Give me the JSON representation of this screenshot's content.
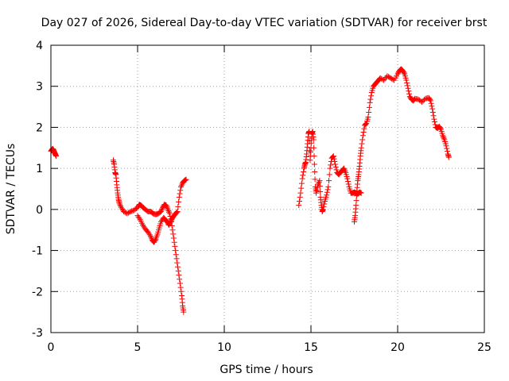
{
  "chart_data": {
    "type": "scatter",
    "title": "Day 027 of 2026, Sidereal Day-to-day VTEC variation (SDTVAR) for receiver brst",
    "xlabel": "GPS time / hours",
    "ylabel": "SDTVAR / TECUs",
    "xlim": [
      0,
      25
    ],
    "ylim": [
      -3,
      4
    ],
    "xticks": [
      0,
      5,
      10,
      15,
      20,
      25
    ],
    "yticks": [
      -3,
      -2,
      -1,
      0,
      1,
      2,
      3,
      4
    ],
    "grid": true,
    "marker": "+",
    "marker_color": "#ff0000",
    "series": [
      {
        "segments": [
          [
            [
              0.0,
              1.42
            ],
            [
              0.05,
              1.45
            ],
            [
              0.1,
              1.48
            ],
            [
              0.15,
              1.45
            ],
            [
              0.2,
              1.4
            ],
            [
              0.25,
              1.35
            ],
            [
              0.3,
              1.3
            ]
          ],
          [
            [
              3.6,
              1.2
            ],
            [
              3.65,
              1.1
            ],
            [
              3.7,
              0.9
            ],
            [
              3.75,
              0.85
            ],
            [
              3.8,
              0.6
            ],
            [
              3.85,
              0.4
            ],
            [
              3.9,
              0.25
            ],
            [
              3.95,
              0.15
            ],
            [
              4.05,
              0.05
            ],
            [
              4.2,
              -0.05
            ],
            [
              4.4,
              -0.1
            ],
            [
              4.6,
              -0.05
            ],
            [
              4.8,
              -0.02
            ],
            [
              5.0,
              0.05
            ],
            [
              5.1,
              0.12
            ],
            [
              5.2,
              0.1
            ],
            [
              5.3,
              0.05
            ],
            [
              5.45,
              0.0
            ],
            [
              5.6,
              -0.05
            ],
            [
              5.75,
              -0.05
            ],
            [
              5.9,
              -0.1
            ],
            [
              6.05,
              -0.12
            ],
            [
              6.2,
              -0.1
            ],
            [
              6.35,
              -0.05
            ],
            [
              6.45,
              0.05
            ],
            [
              6.55,
              0.12
            ],
            [
              6.65,
              0.1
            ],
            [
              6.75,
              0.0
            ],
            [
              6.85,
              -0.1
            ],
            [
              6.95,
              -0.3
            ],
            [
              7.05,
              -0.6
            ],
            [
              7.15,
              -0.9
            ],
            [
              7.25,
              -1.2
            ],
            [
              7.35,
              -1.5
            ],
            [
              7.45,
              -1.8
            ],
            [
              7.55,
              -2.1
            ],
            [
              7.6,
              -2.35
            ],
            [
              7.65,
              -2.5
            ]
          ],
          [
            [
              5.0,
              -0.15
            ],
            [
              5.15,
              -0.25
            ],
            [
              5.3,
              -0.38
            ],
            [
              5.45,
              -0.48
            ],
            [
              5.6,
              -0.55
            ],
            [
              5.75,
              -0.65
            ],
            [
              5.85,
              -0.75
            ],
            [
              5.95,
              -0.8
            ],
            [
              6.05,
              -0.72
            ],
            [
              6.15,
              -0.6
            ],
            [
              6.25,
              -0.45
            ],
            [
              6.35,
              -0.3
            ],
            [
              6.5,
              -0.2
            ],
            [
              6.6,
              -0.25
            ],
            [
              6.7,
              -0.3
            ],
            [
              6.8,
              -0.38
            ],
            [
              6.9,
              -0.3
            ],
            [
              7.0,
              -0.22
            ],
            [
              7.1,
              -0.15
            ],
            [
              7.2,
              -0.1
            ],
            [
              7.3,
              -0.05
            ],
            [
              7.4,
              0.3
            ],
            [
              7.5,
              0.55
            ],
            [
              7.6,
              0.65
            ],
            [
              7.7,
              0.7
            ],
            [
              7.8,
              0.73
            ]
          ],
          [
            [
              14.3,
              0.1
            ],
            [
              14.4,
              0.4
            ],
            [
              14.5,
              0.75
            ],
            [
              14.6,
              1.0
            ],
            [
              14.65,
              1.1
            ],
            [
              14.7,
              1.15
            ],
            [
              14.75,
              1.35
            ],
            [
              14.8,
              1.6
            ],
            [
              14.85,
              1.85
            ],
            [
              14.9,
              1.9
            ],
            [
              14.95,
              1.2
            ],
            [
              15.0,
              1.5
            ],
            [
              15.05,
              1.85
            ],
            [
              15.1,
              1.9
            ],
            [
              15.15,
              1.7
            ],
            [
              15.2,
              1.1
            ],
            [
              15.25,
              0.55
            ],
            [
              15.3,
              0.4
            ],
            [
              15.4,
              0.6
            ],
            [
              15.5,
              0.7
            ],
            [
              15.55,
              0.3
            ],
            [
              15.6,
              0.1
            ],
            [
              15.65,
              -0.05
            ],
            [
              15.7,
              0.0
            ],
            [
              15.8,
              0.2
            ],
            [
              15.9,
              0.35
            ],
            [
              16.0,
              0.55
            ],
            [
              16.1,
              1.0
            ],
            [
              16.2,
              1.25
            ],
            [
              16.3,
              1.3
            ],
            [
              16.4,
              1.1
            ],
            [
              16.5,
              0.9
            ],
            [
              16.6,
              0.85
            ],
            [
              16.7,
              0.9
            ],
            [
              16.8,
              0.95
            ],
            [
              16.9,
              1.0
            ],
            [
              17.0,
              0.9
            ],
            [
              17.1,
              0.75
            ],
            [
              17.2,
              0.55
            ],
            [
              17.3,
              0.4
            ],
            [
              17.4,
              0.4
            ],
            [
              17.5,
              0.42
            ],
            [
              17.6,
              0.4
            ],
            [
              17.7,
              0.38
            ],
            [
              17.8,
              0.42
            ],
            [
              17.9,
              0.4
            ]
          ],
          [
            [
              17.5,
              -0.3
            ],
            [
              17.55,
              -0.15
            ],
            [
              17.6,
              0.1
            ],
            [
              17.65,
              0.45
            ],
            [
              17.7,
              0.7
            ],
            [
              17.75,
              0.85
            ],
            [
              17.8,
              1.05
            ],
            [
              17.85,
              1.3
            ],
            [
              17.9,
              1.5
            ],
            [
              18.0,
              1.8
            ],
            [
              18.1,
              2.05
            ],
            [
              18.2,
              2.1
            ],
            [
              18.3,
              2.25
            ],
            [
              18.4,
              2.6
            ],
            [
              18.5,
              2.85
            ],
            [
              18.6,
              3.0
            ],
            [
              18.7,
              3.05
            ],
            [
              18.8,
              3.1
            ],
            [
              18.9,
              3.15
            ],
            [
              19.0,
              3.2
            ],
            [
              19.2,
              3.15
            ],
            [
              19.4,
              3.25
            ],
            [
              19.6,
              3.2
            ],
            [
              19.8,
              3.15
            ],
            [
              20.0,
              3.3
            ],
            [
              20.1,
              3.38
            ],
            [
              20.2,
              3.42
            ],
            [
              20.3,
              3.38
            ],
            [
              20.4,
              3.3
            ],
            [
              20.5,
              3.15
            ],
            [
              20.6,
              2.95
            ],
            [
              20.7,
              2.75
            ],
            [
              20.8,
              2.68
            ],
            [
              20.9,
              2.65
            ],
            [
              21.0,
              2.7
            ],
            [
              21.2,
              2.68
            ],
            [
              21.4,
              2.62
            ],
            [
              21.6,
              2.7
            ],
            [
              21.8,
              2.72
            ],
            [
              21.9,
              2.65
            ],
            [
              22.0,
              2.45
            ],
            [
              22.1,
              2.2
            ],
            [
              22.2,
              2.0
            ],
            [
              22.3,
              1.98
            ],
            [
              22.4,
              2.02
            ],
            [
              22.5,
              1.95
            ],
            [
              22.6,
              1.8
            ],
            [
              22.7,
              1.7
            ],
            [
              22.8,
              1.55
            ],
            [
              22.9,
              1.35
            ],
            [
              22.95,
              1.27
            ]
          ]
        ]
      }
    ]
  }
}
